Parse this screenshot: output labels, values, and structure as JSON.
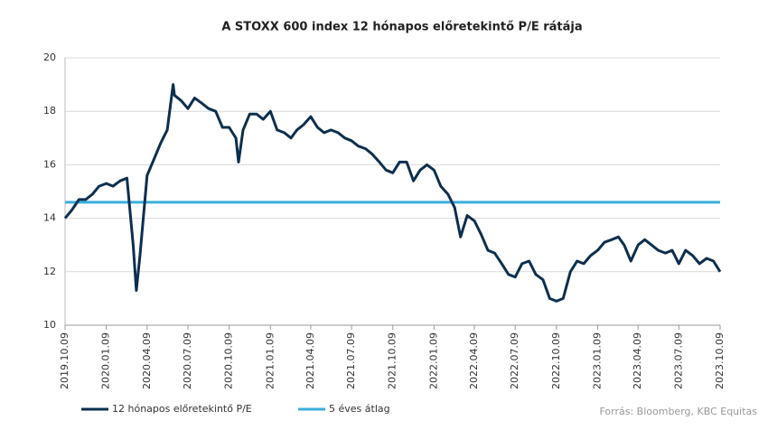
{
  "chart_data": {
    "type": "line",
    "title": "A STOXX 600 index  12 hónapos előretekintő P/E rátája",
    "source": "Forrás: Bloomberg,  KBC Equitas",
    "x": [
      "2019.10.09",
      "2019.10.24",
      "2019.11.09",
      "2019.11.24",
      "2019.12.09",
      "2019.12.24",
      "2020.01.09",
      "2020.01.24",
      "2020.02.09",
      "2020.02.24",
      "2020.03.09",
      "2020.03.16",
      "2020.03.24",
      "2020.04.09",
      "2020.04.24",
      "2020.05.09",
      "2020.05.24",
      "2020.06.06",
      "2020.06.09",
      "2020.06.24",
      "2020.07.09",
      "2020.07.24",
      "2020.08.09",
      "2020.08.24",
      "2020.09.09",
      "2020.09.24",
      "2020.10.09",
      "2020.10.24",
      "2020.10.30",
      "2020.11.09",
      "2020.11.24",
      "2020.12.09",
      "2020.12.24",
      "2021.01.09",
      "2021.01.24",
      "2021.02.09",
      "2021.02.24",
      "2021.03.09",
      "2021.03.24",
      "2021.04.09",
      "2021.04.24",
      "2021.05.09",
      "2021.05.24",
      "2021.06.09",
      "2021.06.24",
      "2021.07.09",
      "2021.07.24",
      "2021.08.09",
      "2021.08.24",
      "2021.09.09",
      "2021.09.24",
      "2021.10.09",
      "2021.10.24",
      "2021.11.09",
      "2021.11.24",
      "2021.12.09",
      "2021.12.24",
      "2022.01.09",
      "2022.01.24",
      "2022.02.09",
      "2022.02.24",
      "2022.03.09",
      "2022.03.24",
      "2022.04.09",
      "2022.04.24",
      "2022.05.09",
      "2022.05.24",
      "2022.06.09",
      "2022.06.24",
      "2022.07.09",
      "2022.07.24",
      "2022.08.09",
      "2022.08.24",
      "2022.09.09",
      "2022.09.24",
      "2022.10.09",
      "2022.10.24",
      "2022.11.09",
      "2022.11.24",
      "2022.12.09",
      "2022.12.24",
      "2023.01.09",
      "2023.01.24",
      "2023.02.09",
      "2023.02.24",
      "2023.03.09",
      "2023.03.24",
      "2023.04.09",
      "2023.04.24",
      "2023.05.09",
      "2023.05.24",
      "2023.06.09",
      "2023.06.24",
      "2023.07.09",
      "2023.07.24",
      "2023.08.09",
      "2023.08.24",
      "2023.09.09",
      "2023.09.24",
      "2023.10.09"
    ],
    "series": [
      {
        "name": "12 hónapos előretekintő P/E",
        "color": "#0d2f4f",
        "values": [
          14.0,
          14.3,
          14.7,
          14.7,
          14.9,
          15.2,
          15.3,
          15.2,
          15.4,
          15.5,
          13.0,
          11.3,
          12.6,
          15.6,
          16.2,
          16.8,
          17.3,
          19.0,
          18.6,
          18.4,
          18.1,
          18.5,
          18.3,
          18.1,
          18.0,
          17.4,
          17.4,
          17.0,
          16.1,
          17.3,
          17.9,
          17.9,
          17.7,
          18.0,
          17.3,
          17.2,
          17.0,
          17.3,
          17.5,
          17.8,
          17.4,
          17.2,
          17.3,
          17.2,
          17.0,
          16.9,
          16.7,
          16.6,
          16.4,
          16.1,
          15.8,
          15.7,
          16.1,
          16.1,
          15.4,
          15.8,
          16.0,
          15.8,
          15.2,
          14.9,
          14.4,
          13.3,
          14.1,
          13.9,
          13.4,
          12.8,
          12.7,
          12.3,
          11.9,
          11.8,
          12.3,
          12.4,
          11.9,
          11.7,
          11.0,
          10.9,
          11.0,
          12.0,
          12.4,
          12.3,
          12.6,
          12.8,
          13.1,
          13.2,
          13.3,
          13.0,
          12.4,
          13.0,
          13.2,
          13.0,
          12.8,
          12.7,
          12.8,
          12.3,
          12.8,
          12.6,
          12.3,
          12.5,
          12.4,
          12.0
        ]
      }
    ],
    "hlines": [
      {
        "name": "5 éves átlag",
        "color": "#3aaed8",
        "value": 14.6
      }
    ],
    "xlim": [
      "2019.10.09",
      "2023.10.09"
    ],
    "xticks": [
      "2019.10.09",
      "2020.01.09",
      "2020.04.09",
      "2020.07.09",
      "2020.10.09",
      "2021.01.09",
      "2021.04.09",
      "2021.07.09",
      "2021.10.09",
      "2022.01.09",
      "2022.04.09",
      "2022.07.09",
      "2022.10.09",
      "2023.01.09",
      "2023.04.09",
      "2023.07.09",
      "2023.10.09"
    ],
    "ylim": [
      10,
      20
    ],
    "yticks": [
      10,
      12,
      14,
      16,
      18,
      20
    ],
    "grid": true
  }
}
